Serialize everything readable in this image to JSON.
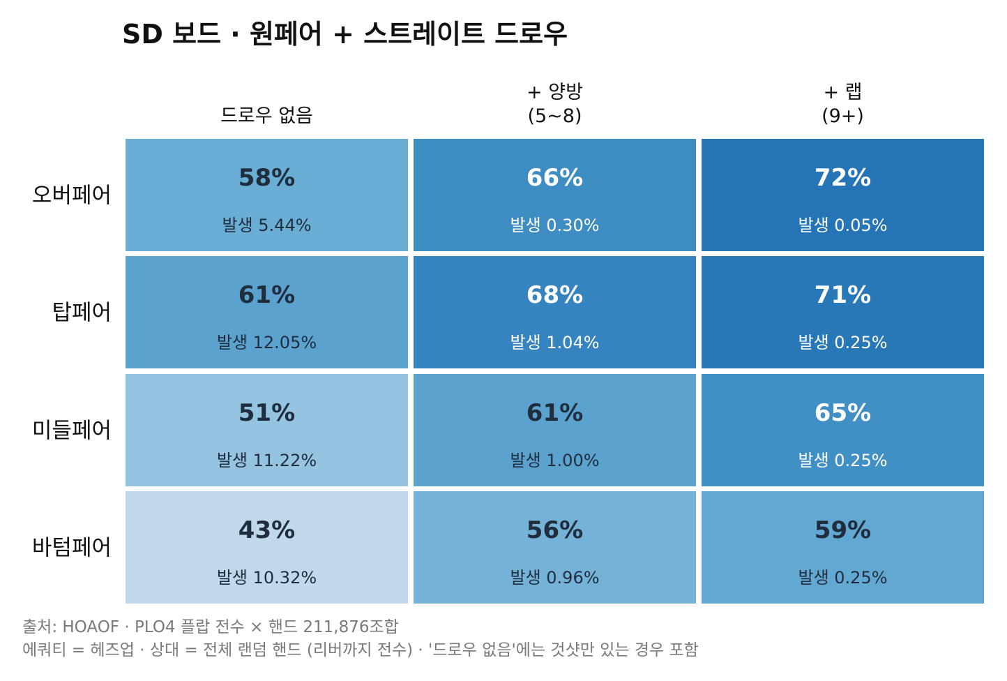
{
  "chart_data": {
    "type": "heatmap",
    "title": "SD 보드 · 원페어 + 스트레이트 드로우",
    "columns": [
      {
        "lines": [
          "드로우 없음"
        ]
      },
      {
        "lines": [
          "+ 양방",
          "(5~8)"
        ]
      },
      {
        "lines": [
          "+ 랩",
          "(9+)"
        ]
      }
    ],
    "rows": [
      "오버페어",
      "탑페어",
      "미들페어",
      "바텀페어"
    ],
    "equity_pct": [
      [
        58,
        66,
        72
      ],
      [
        61,
        68,
        71
      ],
      [
        51,
        61,
        65
      ],
      [
        43,
        56,
        59
      ]
    ],
    "frequency_pct": [
      [
        5.44,
        0.3,
        0.05
      ],
      [
        12.05,
        1.04,
        0.25
      ],
      [
        11.22,
        1.0,
        0.25
      ],
      [
        10.32,
        0.96,
        0.25
      ]
    ],
    "cells": [
      [
        {
          "value": "58%",
          "freq": "발생 5.44%",
          "color": "#6aadd5",
          "text_color": "#1f2d3d"
        },
        {
          "value": "66%",
          "freq": "발생 0.30%",
          "color": "#3d8dc3",
          "text_color": "#ffffff"
        },
        {
          "value": "72%",
          "freq": "발생 0.05%",
          "color": "#2474b6",
          "text_color": "#ffffff"
        }
      ],
      [
        {
          "value": "61%",
          "freq": "발생 12.05%",
          "color": "#5ba2cf",
          "text_color": "#1f2d3d"
        },
        {
          "value": "68%",
          "freq": "발생 1.04%",
          "color": "#3584bf",
          "text_color": "#ffffff"
        },
        {
          "value": "71%",
          "freq": "발생 0.25%",
          "color": "#2878b8",
          "text_color": "#ffffff"
        }
      ],
      [
        {
          "value": "51%",
          "freq": "발생 11.22%",
          "color": "#94c4df",
          "text_color": "#1f2d3d"
        },
        {
          "value": "61%",
          "freq": "발생 1.00%",
          "color": "#5ba2cf",
          "text_color": "#1f2d3d"
        },
        {
          "value": "65%",
          "freq": "발생 0.25%",
          "color": "#4190c5",
          "text_color": "#ffffff"
        }
      ],
      [
        {
          "value": "43%",
          "freq": "발생 10.32%",
          "color": "#c1d8ec",
          "text_color": "#1f2d3d"
        },
        {
          "value": "56%",
          "freq": "발생 0.96%",
          "color": "#74b2d8",
          "text_color": "#1f2d3d"
        },
        {
          "value": "59%",
          "freq": "발생 0.25%",
          "color": "#62a8d2",
          "text_color": "#1f2d3d"
        }
      ]
    ],
    "footnotes": [
      "출처: HOAOF · PLO4 플랍 전수 × 핸드 211,876조합",
      "에쿼티 = 헤즈업 · 상대 = 전체 랜덤 핸드 (리버까지 전수) · '드로우 없음'에는 것샷만 있는 경우 포함"
    ],
    "legend": "none",
    "grid": false
  }
}
